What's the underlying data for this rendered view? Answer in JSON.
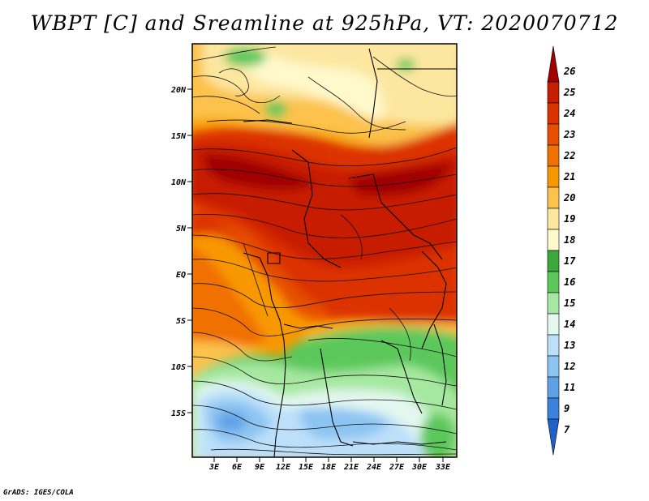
{
  "title": "WBPT [C] and Sreamline at 925hPa, VT: 2020070712",
  "credit": "GrADS: IGES/COLA",
  "map": {
    "lat_labels": [
      "20N",
      "15N",
      "10N",
      "5N",
      "EQ",
      "5S",
      "10S",
      "15S"
    ],
    "lon_labels": [
      "3E",
      "6E",
      "9E",
      "12E",
      "15E",
      "18E",
      "21E",
      "24E",
      "27E",
      "30E",
      "33E"
    ]
  },
  "colorbar": {
    "levels": [
      "26",
      "25",
      "24",
      "23",
      "22",
      "21",
      "20",
      "19",
      "18",
      "17",
      "16",
      "15",
      "14",
      "13",
      "12",
      "11",
      "9",
      "7"
    ],
    "colors": [
      "#a00000",
      "#c81e00",
      "#dc3200",
      "#e65000",
      "#f07000",
      "#f89800",
      "#fcc24c",
      "#fde7a0",
      "#fff9cc",
      "#3aa83a",
      "#5cc85c",
      "#a6e8a0",
      "#e4f8f0",
      "#bce0fa",
      "#8cc4f2",
      "#5ea2e6",
      "#3a82dc",
      "#1f61c8"
    ]
  },
  "colors": {
    "red": "#dc3200",
    "orange": "#f07000",
    "yellow": "#fcc24c",
    "green": "#5cc85c",
    "blue": "#8cc4f2"
  }
}
